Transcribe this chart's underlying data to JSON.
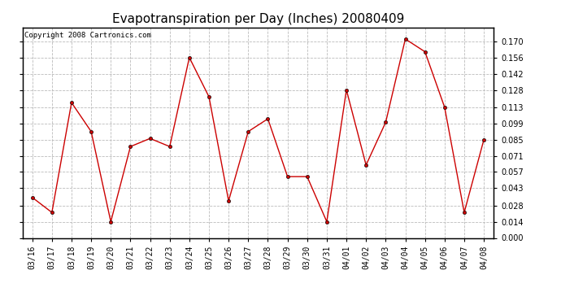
{
  "title": "Evapotranspiration per Day (Inches) 20080409",
  "copyright": "Copyright 2008 Cartronics.com",
  "x_labels": [
    "03/16",
    "03/17",
    "03/18",
    "03/19",
    "03/20",
    "03/21",
    "03/22",
    "03/23",
    "03/24",
    "03/25",
    "03/26",
    "03/27",
    "03/28",
    "03/29",
    "03/30",
    "03/31",
    "04/01",
    "04/02",
    "04/03",
    "04/04",
    "04/05",
    "04/06",
    "04/07",
    "04/08"
  ],
  "y_values": [
    0.035,
    0.022,
    0.117,
    0.092,
    0.014,
    0.079,
    0.086,
    0.079,
    0.156,
    0.122,
    0.032,
    0.092,
    0.103,
    0.053,
    0.053,
    0.014,
    0.128,
    0.063,
    0.1,
    0.172,
    0.161,
    0.113,
    0.022,
    0.085
  ],
  "line_color": "#cc0000",
  "marker": "o",
  "marker_size": 3,
  "bg_color": "#ffffff",
  "plot_bg_color": "#ffffff",
  "grid_color": "#bbbbbb",
  "ylim": [
    0.0,
    0.182
  ],
  "yticks": [
    0.0,
    0.014,
    0.028,
    0.043,
    0.057,
    0.071,
    0.085,
    0.099,
    0.113,
    0.128,
    0.142,
    0.156,
    0.17
  ],
  "title_fontsize": 11,
  "copyright_fontsize": 6.5,
  "tick_fontsize": 7,
  "xlabel_rotation": 90
}
